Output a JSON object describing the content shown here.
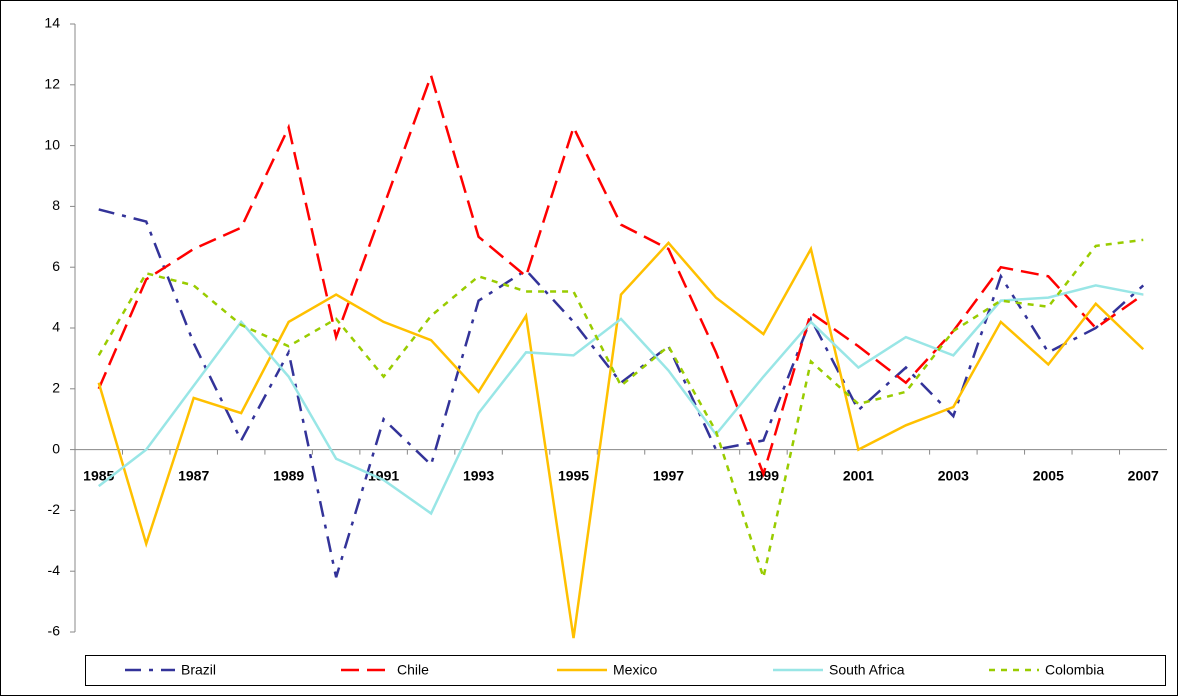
{
  "chart_data": {
    "type": "line",
    "categories": [
      "1985",
      null,
      "1987",
      null,
      "1989",
      null,
      "1991",
      null,
      "1993",
      null,
      "1995",
      null,
      "1997",
      null,
      "1999",
      null,
      "2001",
      null,
      "2003",
      null,
      "2005",
      null,
      "2007"
    ],
    "series": [
      {
        "name": "Brazil",
        "color": "#333399",
        "values": [
          7.9,
          7.5,
          3.5,
          0.3,
          3.2,
          -4.2,
          1.0,
          -0.5,
          4.9,
          5.9,
          4.2,
          2.2,
          3.4,
          0.0,
          0.3,
          4.3,
          1.3,
          2.7,
          1.1,
          5.7,
          3.2,
          4.0,
          5.4
        ]
      },
      {
        "name": "Chile",
        "color": "#ff0000",
        "values": [
          2.0,
          5.6,
          6.6,
          7.3,
          10.6,
          3.7,
          8.0,
          12.3,
          7.0,
          5.7,
          10.6,
          7.4,
          6.6,
          3.2,
          -0.8,
          4.5,
          3.4,
          2.2,
          3.9,
          6.0,
          5.7,
          4.0,
          5.1
        ]
      },
      {
        "name": "Mexico",
        "color": "#ffc000",
        "values": [
          2.2,
          -3.1,
          1.7,
          1.2,
          4.2,
          5.1,
          4.2,
          3.6,
          1.9,
          4.4,
          -6.2,
          5.1,
          6.8,
          5.0,
          3.8,
          6.6,
          0.0,
          0.8,
          1.4,
          4.2,
          2.8,
          4.8,
          3.3
        ]
      },
      {
        "name": "South Africa",
        "color": "#99e6e6",
        "values": [
          -1.2,
          0.0,
          2.1,
          4.2,
          2.4,
          -0.3,
          -1.0,
          -2.1,
          1.2,
          3.2,
          3.1,
          4.3,
          2.6,
          0.5,
          2.4,
          4.2,
          2.7,
          3.7,
          3.1,
          4.9,
          5.0,
          5.4,
          5.1
        ]
      },
      {
        "name": "Colombia",
        "color": "#99cc00",
        "values": [
          3.1,
          5.8,
          5.4,
          4.1,
          3.4,
          4.3,
          2.4,
          4.4,
          5.7,
          5.2,
          5.2,
          2.1,
          3.4,
          0.6,
          -4.2,
          2.9,
          1.5,
          1.9,
          3.9,
          4.9,
          4.7,
          6.7,
          6.9
        ]
      }
    ],
    "ylim": [
      -6,
      14
    ],
    "yticks": [
      -6,
      -4,
      -2,
      0,
      2,
      4,
      6,
      8,
      10,
      12,
      14
    ],
    "legend": "bottom"
  }
}
